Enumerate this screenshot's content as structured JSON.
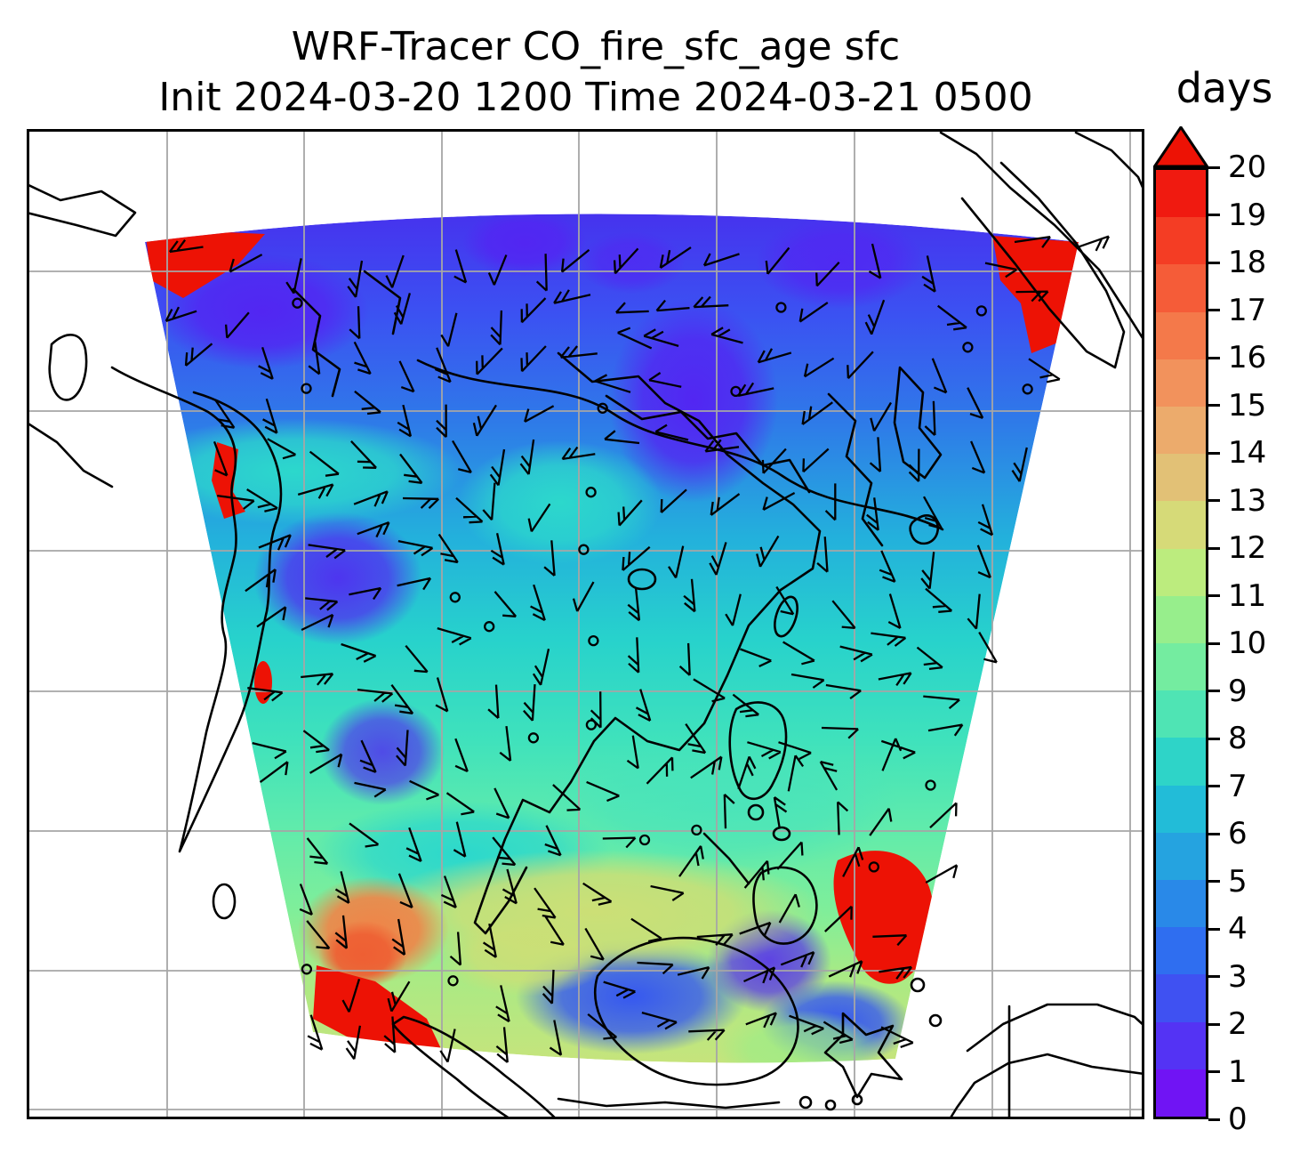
{
  "figure": {
    "title_line1": "WRF-Tracer CO_fire_sfc_age sfc",
    "title_line2": "Init 2024-03-20 1200 Time 2024-03-21 0500"
  },
  "colorbar": {
    "label": "days",
    "min": 0,
    "max": 20,
    "ticks": [
      0,
      1,
      2,
      3,
      4,
      5,
      6,
      7,
      8,
      9,
      10,
      11,
      12,
      13,
      14,
      15,
      16,
      17,
      18,
      19,
      20
    ],
    "colors": [
      "#7014f4",
      "#5433f4",
      "#3f51f2",
      "#2f6ef0",
      "#2989e8",
      "#25a3e0",
      "#22bcd8",
      "#2ed4c8",
      "#4fe4b4",
      "#74eca0",
      "#97ee8c",
      "#bcec7e",
      "#d6da78",
      "#e2c176",
      "#ecab6c",
      "#f2925c",
      "#f4794a",
      "#f55c38",
      "#f43d24",
      "#f01a10"
    ],
    "over_color": "#ed1205"
  },
  "chart_data": {
    "type": "heatmap",
    "title": "WRF-Tracer CO_fire_sfc_age sfc",
    "subtitle": "Init 2024-03-20 1200 Time 2024-03-21 0500",
    "variable": "CO_fire_sfc_age",
    "level": "sfc",
    "init_time": "2024-03-20 1200",
    "valid_time": "2024-03-21 0500",
    "colorbar_label": "days",
    "value_range": [
      0,
      20
    ],
    "colorbar_ticks": [
      0,
      1,
      2,
      3,
      4,
      5,
      6,
      7,
      8,
      9,
      10,
      11,
      12,
      13,
      14,
      15,
      16,
      17,
      18,
      19,
      20
    ],
    "colorbar_extend": "max",
    "projection_domain": "fan-shaped WRF domain over East/Southeast Asia (India to Japan, China to Indonesia)",
    "overlays": [
      "wind barbs",
      "coastlines",
      "lat-lon gridlines"
    ],
    "region_estimates": [
      {
        "region": "northern domain (eastern China, Korea)",
        "tracer_age_days": "0-3"
      },
      {
        "region": "northwest and north-central patches",
        "tracer_age_days": "0-1"
      },
      {
        "region": "central domain (Indochina, northern South China Sea)",
        "tracer_age_days": "4-7"
      },
      {
        "region": "southern domain (Malay Peninsula, Borneo, Philippines)",
        "tracer_age_days": "7-10"
      },
      {
        "region": "far south near Sumatra and Java",
        "tracer_age_days": "10-16"
      },
      {
        "region": "hot spots at domain edges (NW corner, NE corner, west edge, southeast, southwest)",
        "tracer_age_days": "20+"
      }
    ]
  }
}
